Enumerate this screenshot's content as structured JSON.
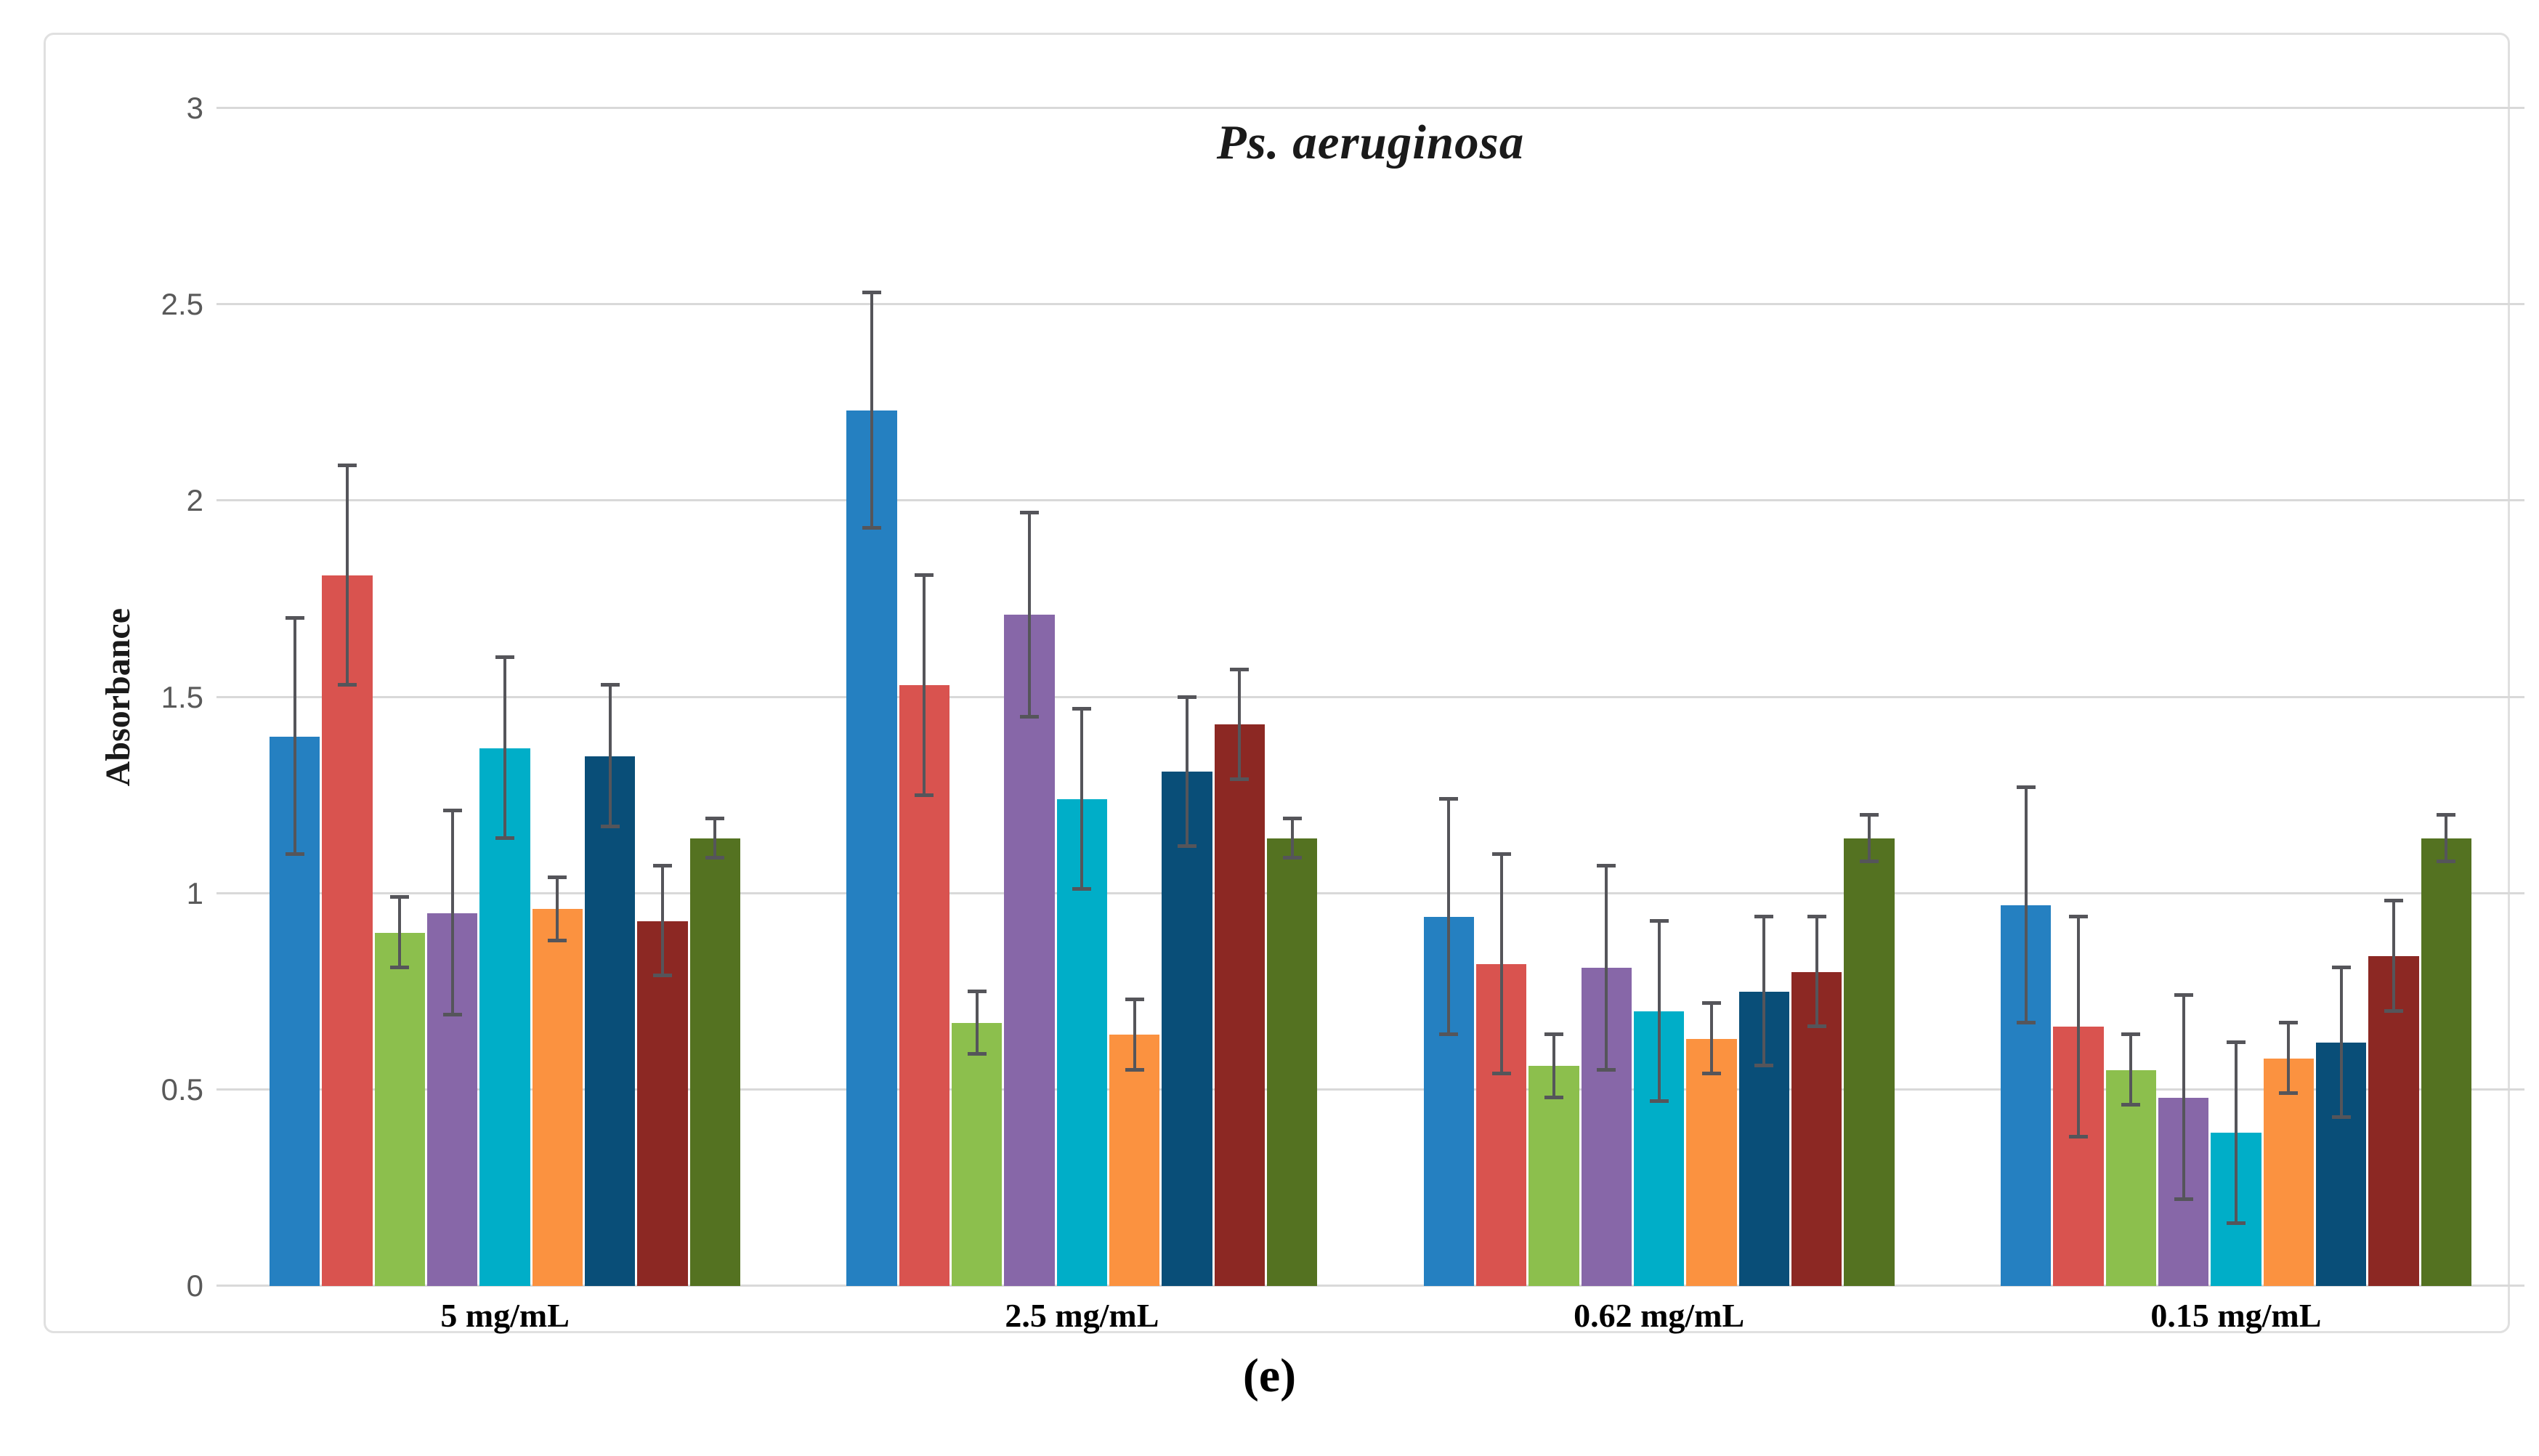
{
  "figure": {
    "title": "Ps. aeruginosa",
    "y_axis_label": "Absorbance",
    "caption": "(e)"
  },
  "chart_data": {
    "type": "bar",
    "title": "Ps. aeruginosa",
    "xlabel": "",
    "ylabel": "Absorbance",
    "ylim": [
      0,
      3
    ],
    "yticks": [
      0,
      0.5,
      1,
      1.5,
      2,
      2.5,
      3
    ],
    "ytick_labels": [
      "0",
      "0.5",
      "1",
      "1.5",
      "2",
      "2.5",
      "3"
    ],
    "grid": true,
    "legend": "none",
    "error_bars": true,
    "categories": [
      "5 mg/mL",
      "2.5 mg/mL",
      "0.62 mg/mL",
      "0.15 mg/mL"
    ],
    "series": [
      {
        "name": "blue",
        "color": "#2580c1",
        "values": [
          1.4,
          2.23,
          0.94,
          0.97
        ],
        "errors": [
          0.3,
          0.3,
          0.3,
          0.3
        ]
      },
      {
        "name": "red",
        "color": "#d9534f",
        "values": [
          1.81,
          1.53,
          0.82,
          0.66
        ],
        "errors": [
          0.28,
          0.28,
          0.28,
          0.28
        ]
      },
      {
        "name": "light-green",
        "color": "#8cbf4d",
        "values": [
          0.9,
          0.67,
          0.56,
          0.55
        ],
        "errors": [
          0.09,
          0.08,
          0.08,
          0.09
        ]
      },
      {
        "name": "purple",
        "color": "#8767a8",
        "values": [
          0.95,
          1.71,
          0.81,
          0.48
        ],
        "errors": [
          0.26,
          0.26,
          0.26,
          0.26
        ]
      },
      {
        "name": "cyan",
        "color": "#00aec8",
        "values": [
          1.37,
          1.24,
          0.7,
          0.39
        ],
        "errors": [
          0.23,
          0.23,
          0.23,
          0.23
        ]
      },
      {
        "name": "orange",
        "color": "#fb9240",
        "values": [
          0.96,
          0.64,
          0.63,
          0.58
        ],
        "errors": [
          0.08,
          0.09,
          0.09,
          0.09
        ]
      },
      {
        "name": "dark-blue",
        "color": "#094e78",
        "values": [
          1.35,
          1.31,
          0.75,
          0.62
        ],
        "errors": [
          0.18,
          0.19,
          0.19,
          0.19
        ]
      },
      {
        "name": "dark-red",
        "color": "#8c2823",
        "values": [
          0.93,
          1.43,
          0.8,
          0.84
        ],
        "errors": [
          0.14,
          0.14,
          0.14,
          0.14
        ]
      },
      {
        "name": "olive-green",
        "color": "#547221",
        "values": [
          1.14,
          1.14,
          1.14,
          1.14
        ],
        "errors": [
          0.05,
          0.05,
          0.06,
          0.06
        ]
      }
    ]
  },
  "colors": {
    "gridline": "#d9d9d9",
    "error_bar": "#55555a",
    "tick_label": "#595959",
    "frame_border": "#e0e0e0",
    "background": "#ffffff"
  }
}
